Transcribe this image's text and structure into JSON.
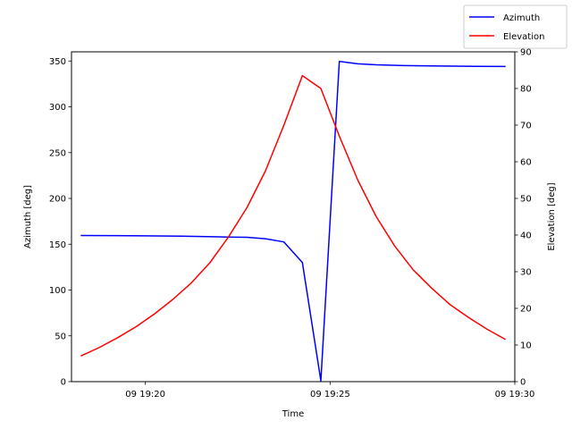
{
  "chart_data": {
    "type": "line",
    "xlabel": "Time",
    "ylabel_left": "Azimuth [deg]",
    "ylabel_right": "Elevation [deg]",
    "x_unit": "minutes after 09 19:00",
    "xlim": [
      18.0,
      30.0
    ],
    "ylim_left": [
      0,
      360
    ],
    "ylim_right": [
      0,
      90
    ],
    "x_ticks": [
      20,
      25,
      30
    ],
    "x_tick_labels": [
      "09 19:20",
      "09 19:25",
      "09 19:30"
    ],
    "y_ticks_left": [
      0,
      50,
      100,
      150,
      200,
      250,
      300,
      350
    ],
    "y_tick_labels_left": [
      "0",
      "50",
      "100",
      "150",
      "200",
      "250",
      "300",
      "350"
    ],
    "y_ticks_right": [
      0,
      10,
      20,
      30,
      40,
      50,
      60,
      70,
      80,
      90
    ],
    "y_tick_labels_right": [
      "0",
      "10",
      "20",
      "30",
      "40",
      "50",
      "60",
      "70",
      "80",
      "90"
    ],
    "grid": false,
    "legend_position": "top-right",
    "series": [
      {
        "name": "Azimuth",
        "axis": "left",
        "color": "#0000ff",
        "points": [
          [
            18.25,
            159.5
          ],
          [
            19.0,
            159.4
          ],
          [
            20.0,
            159.2
          ],
          [
            21.0,
            158.8
          ],
          [
            22.0,
            158.0
          ],
          [
            22.75,
            157.5
          ],
          [
            23.25,
            156.0
          ],
          [
            23.75,
            152.5
          ],
          [
            24.25,
            130.0
          ],
          [
            24.75,
            1.0
          ],
          [
            25.25,
            349.5
          ],
          [
            25.75,
            347.0
          ],
          [
            26.25,
            345.8
          ],
          [
            27.0,
            345.0
          ],
          [
            28.0,
            344.5
          ],
          [
            29.0,
            344.2
          ],
          [
            29.75,
            344.0
          ]
        ]
      },
      {
        "name": "Elevation",
        "axis": "right",
        "color": "#ff0000",
        "points": [
          [
            18.25,
            7.0
          ],
          [
            18.75,
            9.3
          ],
          [
            19.25,
            12.0
          ],
          [
            19.75,
            15.0
          ],
          [
            20.25,
            18.5
          ],
          [
            20.75,
            22.5
          ],
          [
            21.25,
            27.0
          ],
          [
            21.75,
            32.5
          ],
          [
            22.25,
            39.5
          ],
          [
            22.75,
            47.5
          ],
          [
            23.25,
            57.5
          ],
          [
            23.75,
            70.0
          ],
          [
            24.25,
            83.5
          ],
          [
            24.75,
            80.0
          ],
          [
            25.25,
            67.0
          ],
          [
            25.75,
            55.0
          ],
          [
            26.25,
            45.0
          ],
          [
            26.75,
            37.0
          ],
          [
            27.25,
            30.5
          ],
          [
            27.75,
            25.5
          ],
          [
            28.25,
            21.0
          ],
          [
            28.75,
            17.5
          ],
          [
            29.25,
            14.3
          ],
          [
            29.75,
            11.5
          ]
        ]
      }
    ]
  }
}
